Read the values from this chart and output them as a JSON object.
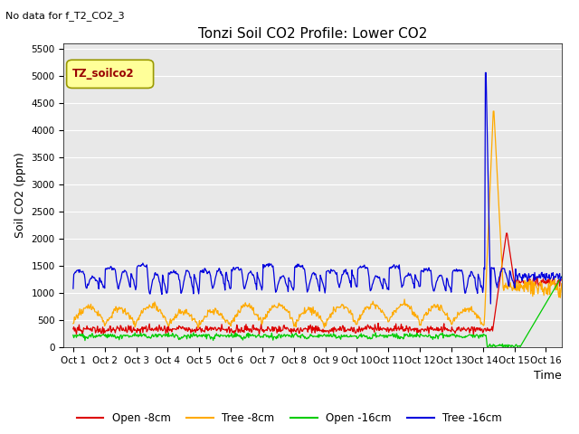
{
  "title": "Tonzi Soil CO2 Profile: Lower CO2",
  "no_data_text": "No data for f_T2_CO2_3",
  "legend_box_text": "TZ_soilco2",
  "ylabel": "Soil CO2 (ppm)",
  "xlabel": "Time",
  "ylim": [
    0,
    5600
  ],
  "yticks": [
    0,
    500,
    1000,
    1500,
    2000,
    2500,
    3000,
    3500,
    4000,
    4500,
    5000,
    5500
  ],
  "xtick_labels": [
    "Oct 1",
    "Oct 2",
    "Oct 3",
    "Oct 4",
    "Oct 5",
    "Oct 6",
    "Oct 7",
    "Oct 8",
    "Oct 9",
    "Oct 10",
    "Oct 11",
    "Oct 12",
    "Oct 13",
    "Oct 14",
    "Oct 15",
    "Oct 16"
  ],
  "line_colors": {
    "open_8cm": "#dd0000",
    "tree_8cm": "#ffaa00",
    "open_16cm": "#00cc00",
    "tree_16cm": "#0000dd"
  },
  "legend_labels": [
    "Open -8cm",
    "Tree -8cm",
    "Open -16cm",
    "Tree -16cm"
  ],
  "plot_bg_color": "#e8e8e8",
  "grid_color": "#ffffff",
  "legend_box_bg": "#ffff99",
  "legend_box_edge": "#999900",
  "legend_box_text_color": "#990000"
}
